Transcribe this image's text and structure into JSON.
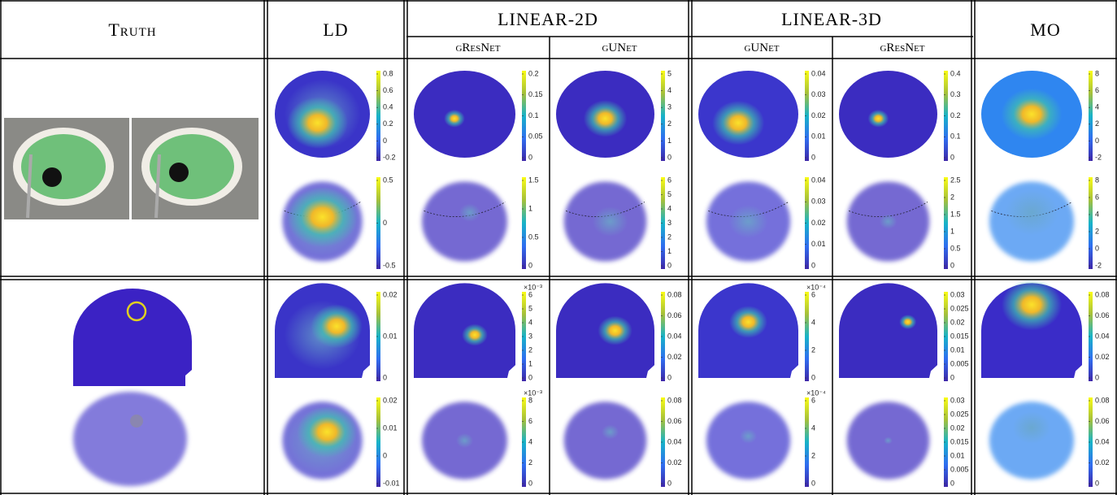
{
  "header": {
    "columns": [
      {
        "title": "Truth"
      },
      {
        "title": "LD"
      },
      {
        "title": "LINEAR-2D",
        "sub": [
          "gResNet",
          "gUNet"
        ]
      },
      {
        "title": "LINEAR-3D",
        "sub": [
          "gUNet",
          "gResNet"
        ]
      },
      {
        "title": "MO"
      }
    ]
  },
  "blocks": [
    {
      "rows": [
        {
          "cells": [
            {
              "ticks": [
                "0.8",
                "0.6",
                "0.4",
                "0.2",
                "0",
                "-0.2"
              ]
            },
            {
              "ticks": [
                "0.2",
                "0.15",
                "0.1",
                "0.05",
                "0"
              ]
            },
            {
              "ticks": [
                "5",
                "4",
                "3",
                "2",
                "1",
                "0"
              ]
            },
            {
              "ticks": [
                "0.04",
                "0.03",
                "0.02",
                "0.01",
                "0"
              ]
            },
            {
              "ticks": [
                "0.4",
                "0.3",
                "0.2",
                "0.1",
                "0"
              ]
            },
            {
              "ticks": [
                "8",
                "6",
                "4",
                "2",
                "0",
                "-2"
              ]
            }
          ]
        },
        {
          "cells": [
            {
              "ticks": [
                "0.5",
                "0",
                "-0.5"
              ]
            },
            {
              "ticks": [
                "1.5",
                "1",
                "0.5",
                "0"
              ]
            },
            {
              "ticks": [
                "6",
                "5",
                "4",
                "3",
                "2",
                "1",
                "0"
              ]
            },
            {
              "ticks": [
                "0.04",
                "0.03",
                "0.02",
                "0.01",
                "0"
              ]
            },
            {
              "ticks": [
                "2.5",
                "2",
                "1.5",
                "1",
                "0.5",
                "0"
              ]
            },
            {
              "ticks": [
                "8",
                "6",
                "4",
                "2",
                "0",
                "-2"
              ]
            }
          ]
        }
      ]
    },
    {
      "rows": [
        {
          "cells": [
            {
              "ticks": [
                "0.02",
                "0.01",
                "0"
              ]
            },
            {
              "exponent": "×10⁻³",
              "ticks": [
                "6",
                "5",
                "4",
                "3",
                "2",
                "1",
                "0"
              ]
            },
            {
              "ticks": [
                "0.08",
                "0.06",
                "0.04",
                "0.02",
                "0"
              ]
            },
            {
              "exponent": "×10⁻⁴",
              "ticks": [
                "6",
                "4",
                "2",
                "0"
              ]
            },
            {
              "ticks": [
                "0.03",
                "0.025",
                "0.02",
                "0.015",
                "0.01",
                "0.005",
                "0"
              ]
            },
            {
              "ticks": [
                "0.08",
                "0.06",
                "0.04",
                "0.02",
                "0"
              ]
            }
          ]
        },
        {
          "cells": [
            {
              "ticks": [
                "0.02",
                "0.01",
                "0",
                "-0.01"
              ]
            },
            {
              "exponent": "×10⁻³",
              "ticks": [
                "8",
                "6",
                "4",
                "2",
                "0"
              ]
            },
            {
              "ticks": [
                "0.08",
                "0.06",
                "0.04",
                "0.02",
                "0"
              ]
            },
            {
              "exponent": "×10⁻⁴",
              "ticks": [
                "6",
                "4",
                "2",
                "0"
              ]
            },
            {
              "ticks": [
                "0.03",
                "0.025",
                "0.02",
                "0.015",
                "0.01",
                "0.005",
                "0"
              ]
            },
            {
              "ticks": [
                "0.08",
                "0.06",
                "0.04",
                "0.02",
                "0"
              ]
            }
          ]
        }
      ]
    }
  ]
}
